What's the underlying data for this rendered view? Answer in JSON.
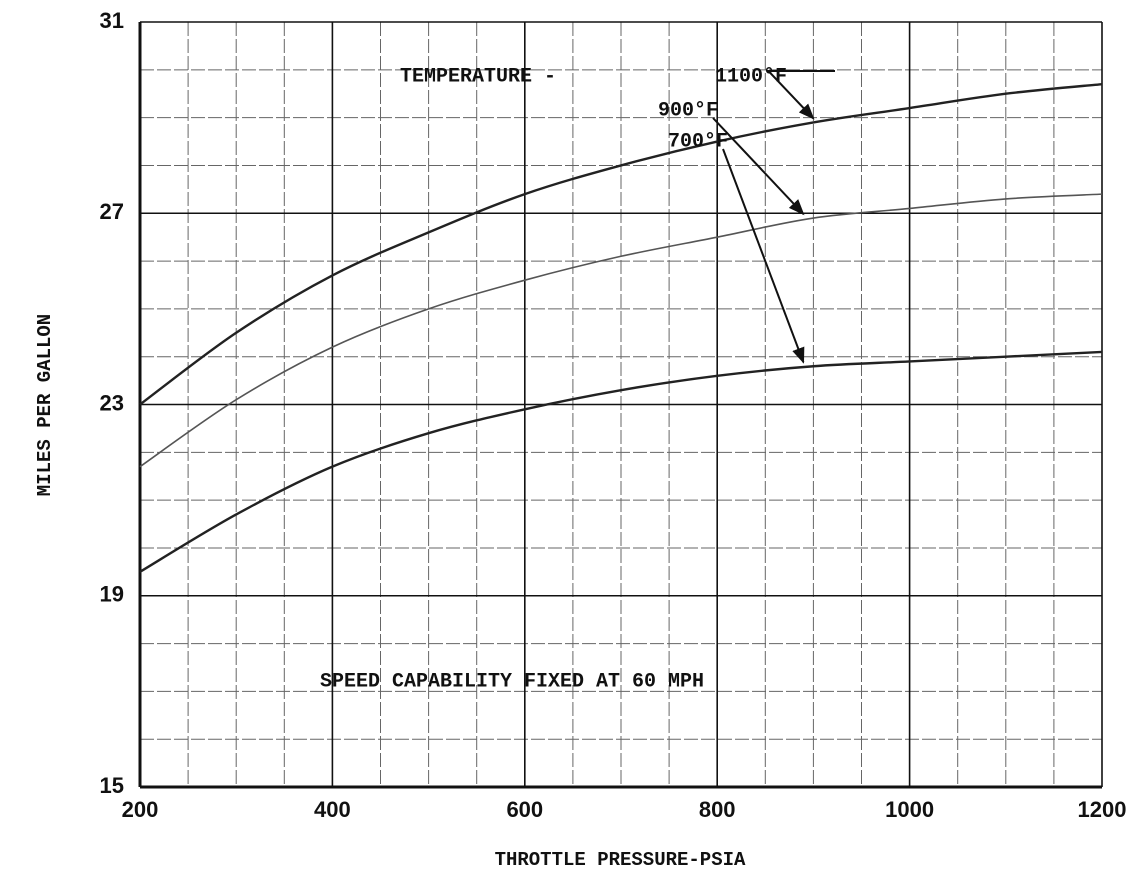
{
  "chart_data": {
    "type": "line",
    "x_label": "THROTTLE PRESSURE-PSIA",
    "y_label": "MILES PER GALLON",
    "annotations": [
      "TEMPERATURE -",
      "SPEED CAPABILITY FIXED AT 60 MPH"
    ],
    "x": [
      200,
      300,
      400,
      500,
      600,
      700,
      800,
      900,
      1000,
      1100,
      1200
    ],
    "series": [
      {
        "name": "1100°F",
        "color": "#222222",
        "values": [
          23.0,
          24.5,
          25.7,
          26.6,
          27.4,
          28.0,
          28.5,
          28.9,
          29.2,
          29.5,
          29.7
        ]
      },
      {
        "name": "900°F",
        "color": "#555555",
        "values": [
          21.7,
          23.1,
          24.2,
          25.0,
          25.6,
          26.1,
          26.5,
          26.9,
          27.1,
          27.3,
          27.4
        ]
      },
      {
        "name": "700°F",
        "color": "#222222",
        "values": [
          19.5,
          20.7,
          21.7,
          22.4,
          22.9,
          23.3,
          23.6,
          23.8,
          23.9,
          24.0,
          24.1
        ]
      }
    ],
    "xlim": [
      200,
      1200
    ],
    "ylim": [
      15,
      31
    ],
    "xticks": [
      200,
      400,
      600,
      800,
      1000,
      1200
    ],
    "yticks": [
      15,
      19,
      23,
      27,
      31
    ],
    "xminorticks": [
      250,
      300,
      350,
      450,
      500,
      550,
      650,
      700,
      750,
      850,
      900,
      950,
      1050,
      1100,
      1150
    ],
    "yminorticks": [
      16,
      17,
      18,
      20,
      21,
      22,
      24,
      25,
      26,
      28,
      29,
      30
    ],
    "grid": true
  }
}
